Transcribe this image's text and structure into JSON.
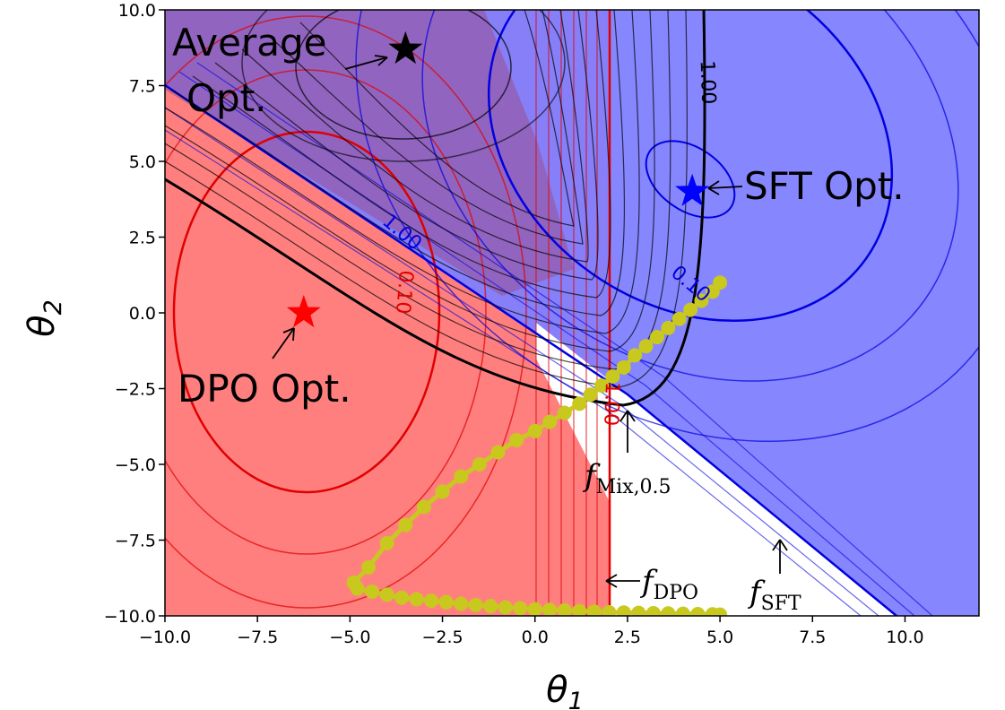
{
  "chart_data": {
    "type": "contour",
    "xlim": [
      -10.0,
      12.0
    ],
    "ylim": [
      -10.0,
      10.0
    ],
    "xlabel": "θ",
    "xlabel_sub": "1",
    "ylabel": "θ",
    "ylabel_sub": "2",
    "x_ticks": [
      {
        "value": -10.0,
        "label": "−10.0"
      },
      {
        "value": -7.5,
        "label": "−7.5"
      },
      {
        "value": -5.0,
        "label": "−5.0"
      },
      {
        "value": -2.5,
        "label": "−2.5"
      },
      {
        "value": 0.0,
        "label": "0.0"
      },
      {
        "value": 2.5,
        "label": "2.5"
      },
      {
        "value": 5.0,
        "label": "5.0"
      },
      {
        "value": 7.5,
        "label": "7.5"
      },
      {
        "value": 10.0,
        "label": "10.0"
      }
    ],
    "y_ticks": [
      {
        "value": 10.0,
        "label": "10.0"
      },
      {
        "value": 7.5,
        "label": "7.5"
      },
      {
        "value": 5.0,
        "label": "5.0"
      },
      {
        "value": 2.5,
        "label": "2.5"
      },
      {
        "value": 0.0,
        "label": "0.0"
      },
      {
        "value": -2.5,
        "label": "−2.5"
      },
      {
        "value": -5.0,
        "label": "−5.0"
      },
      {
        "value": -7.5,
        "label": "−7.5"
      },
      {
        "value": -10.0,
        "label": "−10.0"
      }
    ],
    "colors": {
      "dpo_region": "#ff7f7f",
      "sft_region": "#7f7fff",
      "mix_region": "#9a4f8f",
      "dpo_line": "#e00000",
      "sft_line": "#0000e0",
      "mix_line": "#000000",
      "trajectory": "#c8c81e"
    },
    "optima": [
      {
        "name": "DPO Opt.",
        "x": -6.25,
        "y": 0.0,
        "color": "#ff0000"
      },
      {
        "name": "SFT Opt.",
        "x": 4.25,
        "y": 4.0,
        "color": "#0000ff"
      },
      {
        "name": "Average Opt.",
        "x": -3.5,
        "y": 8.7,
        "color": "#000000"
      }
    ],
    "contour_labels": [
      {
        "text": "1.00",
        "x": 4.5,
        "y": 7.6,
        "color": "#000000",
        "rotate": 88
      },
      {
        "text": "1.00",
        "x": -3.7,
        "y": 2.5,
        "color": "#0000e0",
        "rotate": 40
      },
      {
        "text": "0.10",
        "x": -3.7,
        "y": 0.7,
        "color": "#e00000",
        "rotate": 95
      },
      {
        "text": "0.10",
        "x": 4.1,
        "y": 0.8,
        "color": "#0000e0",
        "rotate": 40
      },
      {
        "text": "1.00",
        "x": 1.9,
        "y": -3.0,
        "color": "#e00000",
        "rotate": 92
      }
    ],
    "function_labels": [
      {
        "base": "f",
        "sub": "Mix,0.5"
      },
      {
        "base": "f",
        "sub": "DPO"
      },
      {
        "base": "f",
        "sub": "SFT"
      }
    ],
    "trajectory_upper": [
      [
        -4.9,
        -8.9
      ],
      [
        -4.5,
        -8.4
      ],
      [
        -4.0,
        -7.6
      ],
      [
        -3.5,
        -7.0
      ],
      [
        -3.0,
        -6.4
      ],
      [
        -2.5,
        -5.9
      ],
      [
        -2.0,
        -5.4
      ],
      [
        -1.5,
        -5.0
      ],
      [
        -1.0,
        -4.6
      ],
      [
        -0.5,
        -4.2
      ],
      [
        0.0,
        -3.9
      ],
      [
        0.4,
        -3.6
      ],
      [
        0.8,
        -3.3
      ],
      [
        1.2,
        -3.0
      ],
      [
        1.5,
        -2.7
      ],
      [
        1.8,
        -2.4
      ],
      [
        2.1,
        -2.1
      ],
      [
        2.4,
        -1.8
      ],
      [
        2.7,
        -1.4
      ],
      [
        3.0,
        -1.1
      ],
      [
        3.3,
        -0.8
      ],
      [
        3.6,
        -0.5
      ],
      [
        3.9,
        -0.2
      ],
      [
        4.2,
        0.1
      ],
      [
        4.5,
        0.4
      ],
      [
        4.8,
        0.7
      ],
      [
        5.0,
        1.0
      ]
    ],
    "trajectory_lower": [
      [
        -4.8,
        -9.1
      ],
      [
        -4.4,
        -9.2
      ],
      [
        -4.0,
        -9.3
      ],
      [
        -3.6,
        -9.4
      ],
      [
        -3.2,
        -9.45
      ],
      [
        -2.8,
        -9.5
      ],
      [
        -2.4,
        -9.55
      ],
      [
        -2.0,
        -9.6
      ],
      [
        -1.6,
        -9.64
      ],
      [
        -1.2,
        -9.68
      ],
      [
        -0.8,
        -9.72
      ],
      [
        -0.4,
        -9.75
      ],
      [
        0.0,
        -9.78
      ],
      [
        0.4,
        -9.8
      ],
      [
        0.8,
        -9.82
      ],
      [
        1.2,
        -9.84
      ],
      [
        1.6,
        -9.86
      ],
      [
        2.0,
        -9.88
      ],
      [
        2.4,
        -9.89
      ],
      [
        2.8,
        -9.9
      ],
      [
        3.2,
        -9.91
      ],
      [
        3.6,
        -9.92
      ],
      [
        4.0,
        -9.93
      ],
      [
        4.4,
        -9.94
      ],
      [
        4.8,
        -9.95
      ],
      [
        5.0,
        -9.96
      ]
    ]
  }
}
